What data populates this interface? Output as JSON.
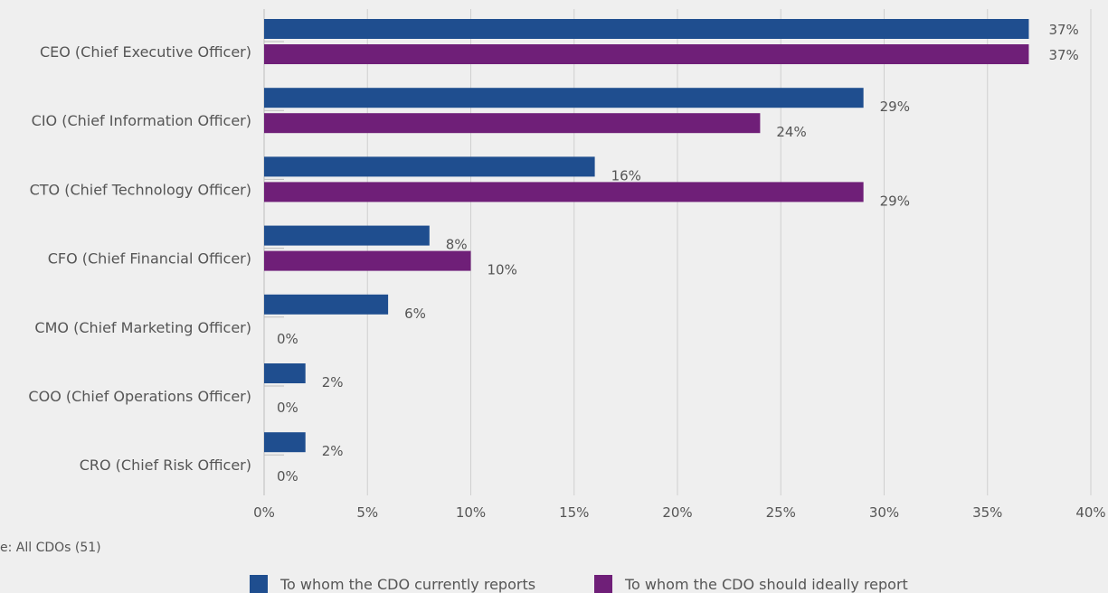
{
  "colors": {
    "current": "#1f4e8f",
    "ideal": "#6f1f78",
    "grid": "#cfcfcf",
    "text": "#555555",
    "background": "#efefef"
  },
  "base_note": "e: All CDOs (51)",
  "chart_data": {
    "type": "bar",
    "orientation": "horizontal",
    "title": "",
    "xlabel": "",
    "ylabel": "",
    "categories": [
      "CEO (Chief Executive Officer)",
      "CIO (Chief Information Officer)",
      "CTO (Chief Technology Officer)",
      "CFO (Chief Financial Officer)",
      "CMO (Chief Marketing Officer)",
      "COO (Chief Operations Officer)",
      "CRO (Chief Risk Officer)"
    ],
    "series": [
      {
        "name": "To whom the CDO currently reports",
        "values": [
          37,
          29,
          16,
          8,
          6,
          2,
          2
        ],
        "labels": [
          "37%",
          "29%",
          "16%",
          "8%",
          "6%",
          "2%",
          "2%"
        ]
      },
      {
        "name": "To whom the CDO should ideally report",
        "values": [
          37,
          24,
          29,
          10,
          0,
          0,
          0
        ],
        "labels": [
          "37%",
          "24%",
          "29%",
          "10%",
          "0%",
          "0%",
          "0%"
        ]
      }
    ],
    "xlim": [
      0,
      40
    ],
    "xticks": [
      "0%",
      "5%",
      "10%",
      "15%",
      "20%",
      "25%",
      "30%",
      "35%",
      "40%"
    ],
    "grid": true,
    "legend": "bottom"
  }
}
